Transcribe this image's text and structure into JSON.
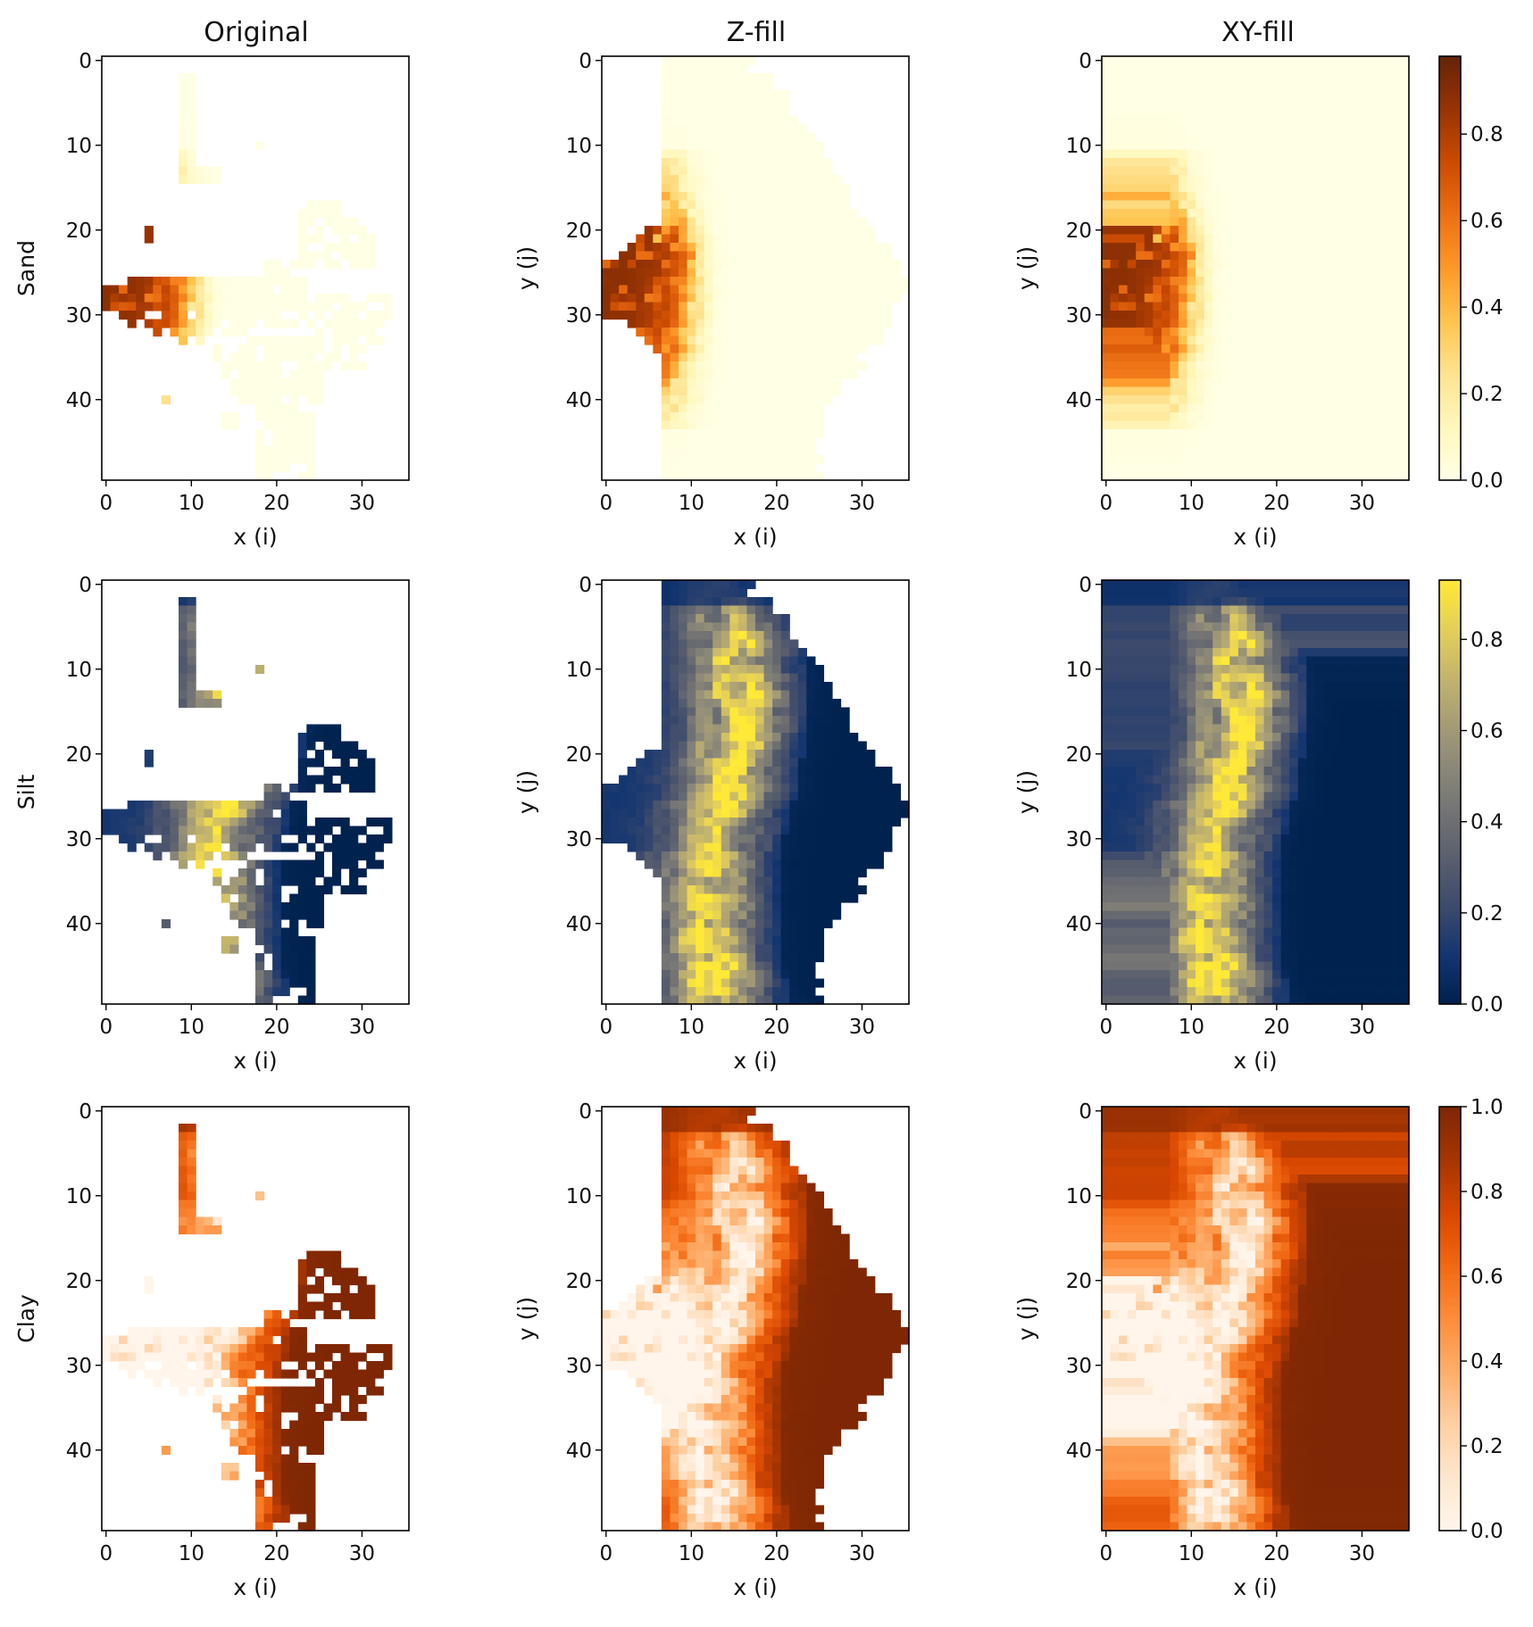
{
  "figure": {
    "column_titles": [
      "Original",
      "Z-fill",
      "XY-fill"
    ],
    "row_labels": [
      "Sand",
      "Silt",
      "Clay"
    ]
  },
  "chart_data": {
    "type": "heatmap",
    "layout": "3x3 grid of heatmap panels; one shared colorbar per row on the right",
    "grid": {
      "nx": 36,
      "ny": 50,
      "x_range": [
        -0.5,
        35.5
      ],
      "y_range": [
        49.5,
        -0.5
      ],
      "y_inverted": true
    },
    "x_ticks": [
      0,
      10,
      20,
      30
    ],
    "y_ticks": [
      0,
      10,
      20,
      30,
      40
    ],
    "xlabel": "x (i)",
    "ylabel": "y (j)",
    "rows": [
      {
        "name": "Sand",
        "colormap": "YlOrBr",
        "colors": [
          "#ffffe5",
          "#fff7bc",
          "#fee391",
          "#fec44f",
          "#fe9929",
          "#ec7014",
          "#cc4c02",
          "#993404",
          "#662506"
        ],
        "vmin": 0.0,
        "vmax": 0.98,
        "colorbar_ticks": [
          "0.0",
          "0.2",
          "0.4",
          "0.6",
          "0.8"
        ],
        "panels": [
          {
            "column": "Original",
            "ylabel": "Sand",
            "fill": "sparse"
          },
          {
            "column": "Z-fill",
            "ylabel": "y (j)",
            "fill": "z"
          },
          {
            "column": "XY-fill",
            "ylabel": "y (j)",
            "fill": "xy"
          }
        ]
      },
      {
        "name": "Silt",
        "colormap": "cividis",
        "colors": [
          "#00224e",
          "#123570",
          "#3b496c",
          "#575d6d",
          "#707173",
          "#8a8779",
          "#a69d75",
          "#c4b56c",
          "#e4cf5b",
          "#fee838"
        ],
        "vmin": 0.0,
        "vmax": 0.93,
        "colorbar_ticks": [
          "0.0",
          "0.2",
          "0.4",
          "0.6",
          "0.8"
        ],
        "panels": [
          {
            "column": "Original",
            "ylabel": "Silt",
            "fill": "sparse"
          },
          {
            "column": "Z-fill",
            "ylabel": "y (j)",
            "fill": "z"
          },
          {
            "column": "XY-fill",
            "ylabel": "y (j)",
            "fill": "xy"
          }
        ]
      },
      {
        "name": "Clay",
        "colormap": "Oranges",
        "colors": [
          "#fff5eb",
          "#fee6ce",
          "#fdd0a2",
          "#fdae6b",
          "#fd8d3c",
          "#f16913",
          "#d94801",
          "#a63603",
          "#7f2704"
        ],
        "vmin": 0.0,
        "vmax": 1.0,
        "colorbar_ticks": [
          "0.0",
          "0.2",
          "0.4",
          "0.6",
          "0.8",
          "1.0"
        ],
        "panels": [
          {
            "column": "Original",
            "ylabel": "Clay",
            "fill": "sparse"
          },
          {
            "column": "Z-fill",
            "ylabel": "y (j)",
            "fill": "z"
          },
          {
            "column": "XY-fill",
            "ylabel": "y (j)",
            "fill": "xy"
          }
        ]
      }
    ]
  }
}
